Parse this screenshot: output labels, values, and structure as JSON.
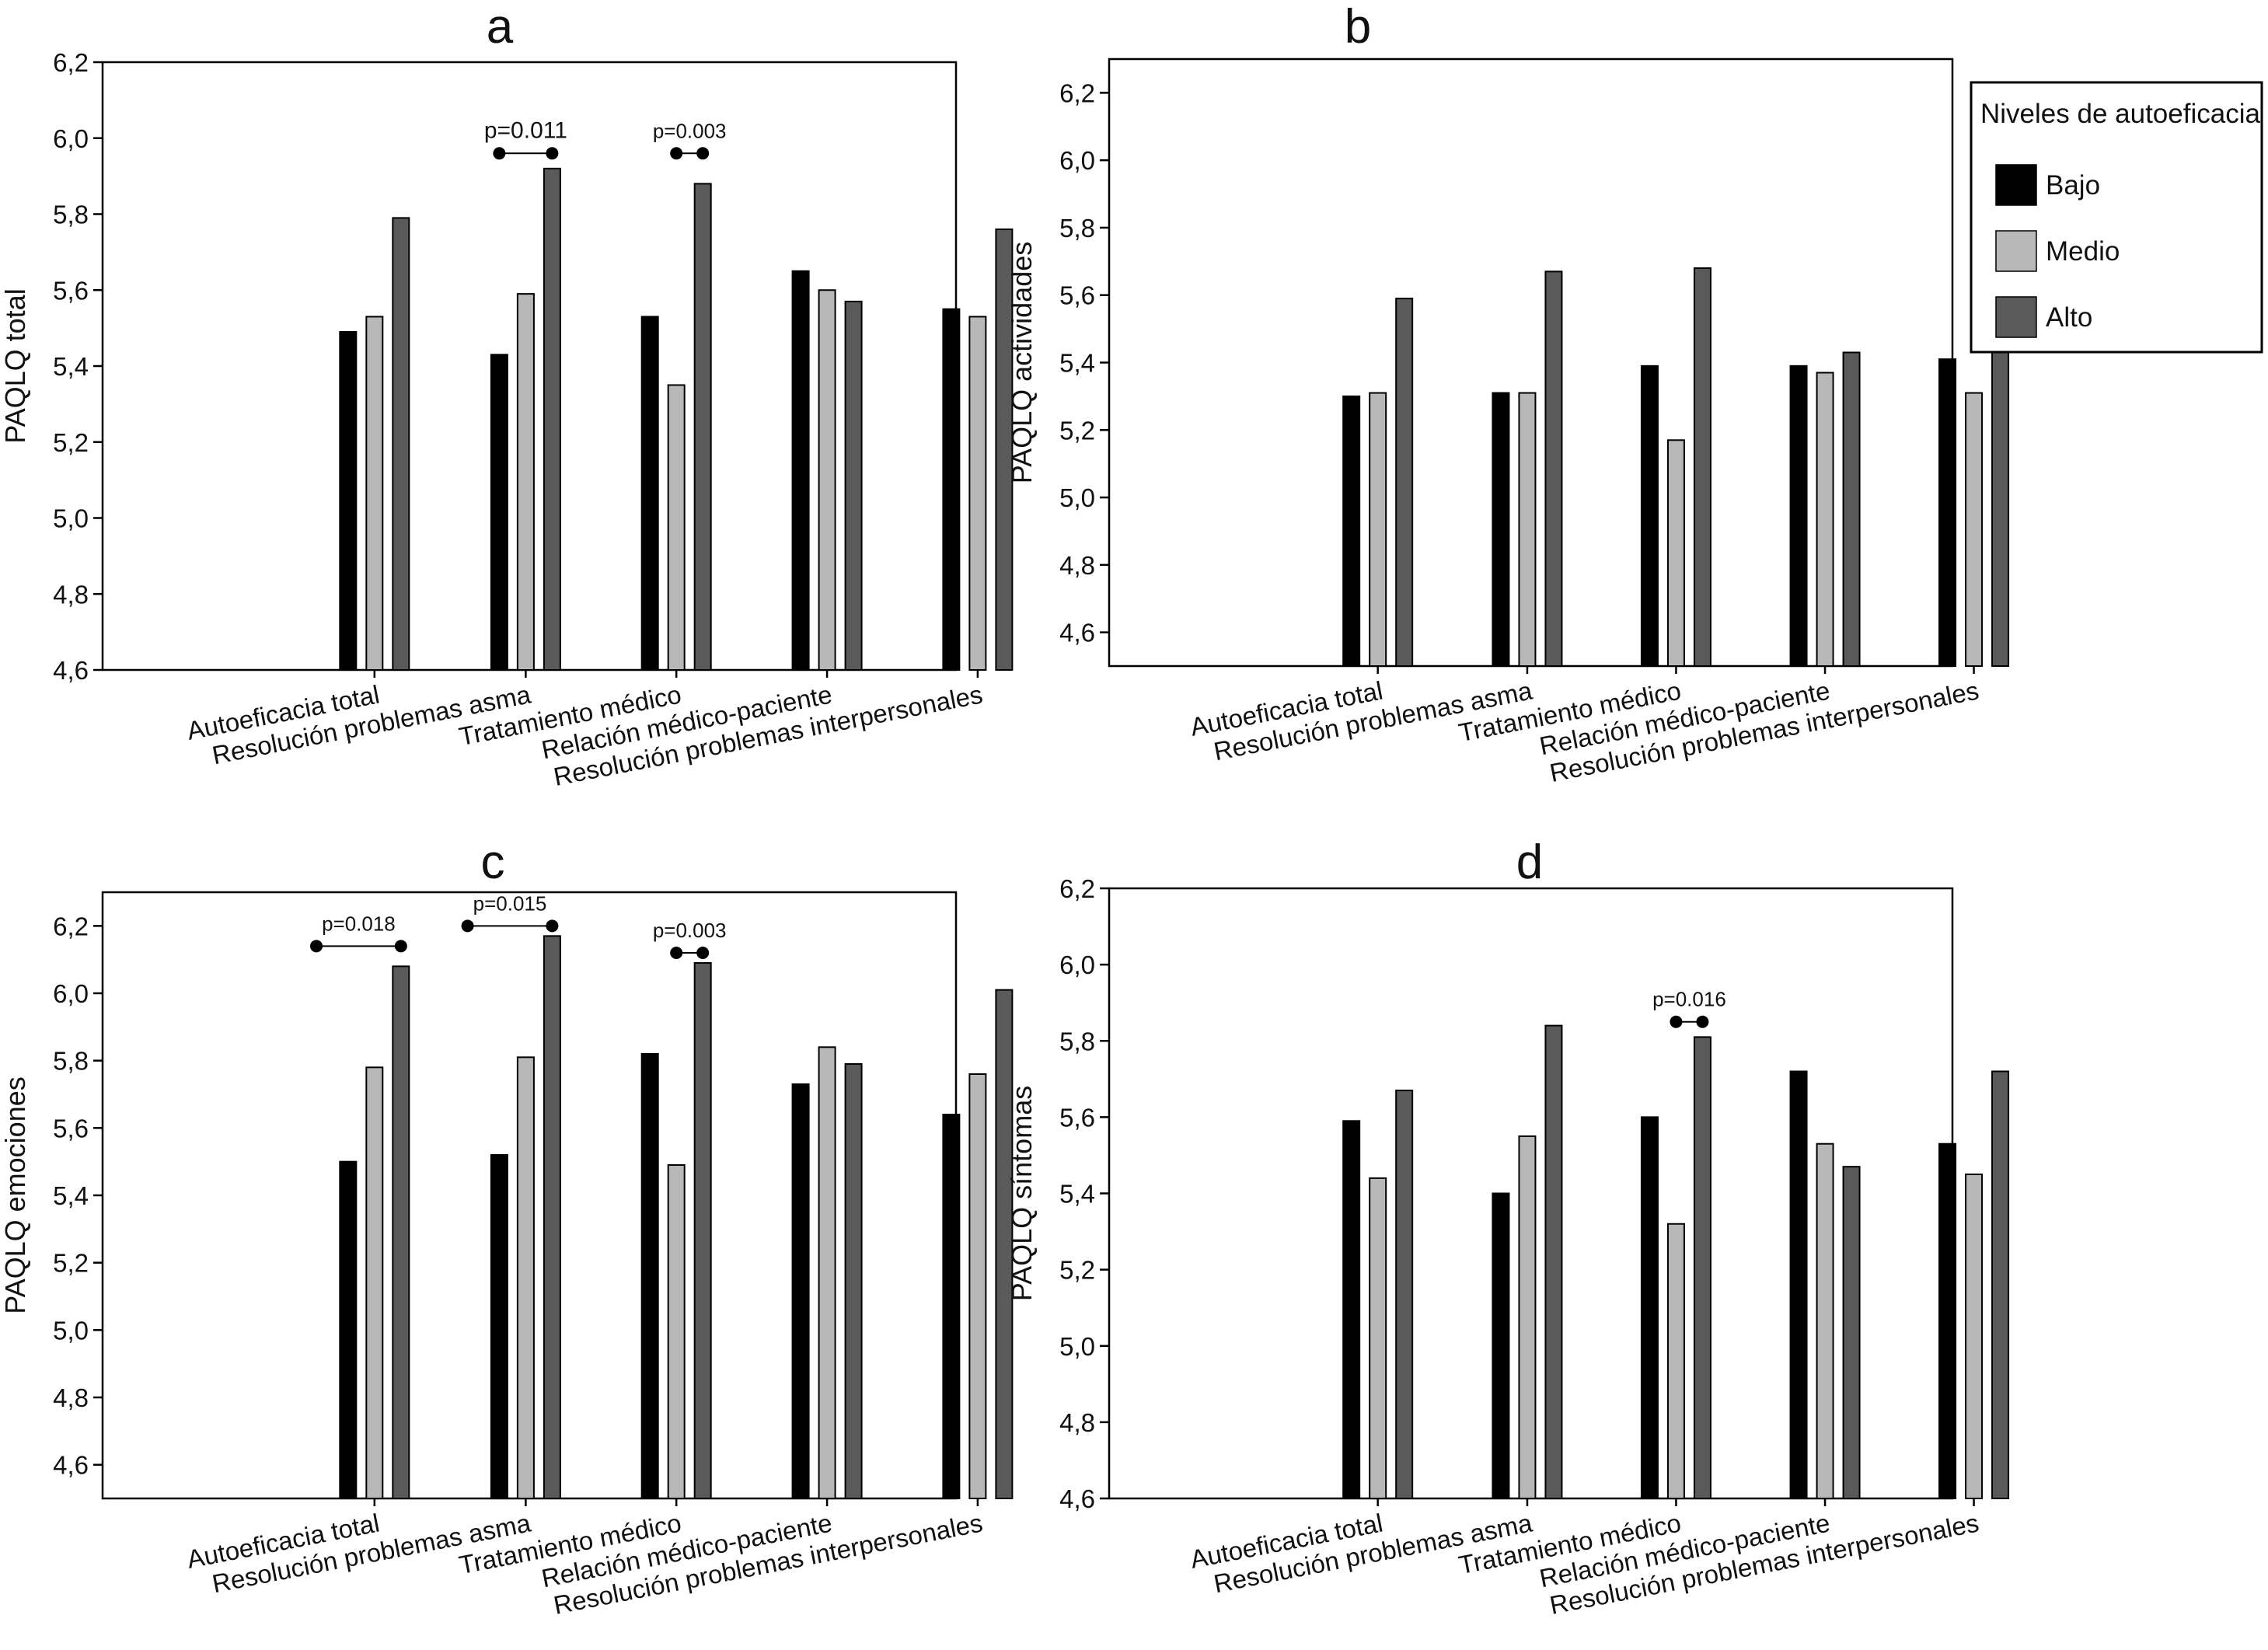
{
  "figure": {
    "legend": {
      "title": "Niveles de autoeficacia",
      "items": [
        {
          "label": "Bajo",
          "color": "#000000"
        },
        {
          "label": "Medio",
          "color": "#b8b8b8"
        },
        {
          "label": "Alto",
          "color": "#5a5a5a"
        }
      ]
    }
  },
  "chart_data": [
    {
      "panel": "a",
      "type": "bar",
      "title": "a",
      "ylabel": "PAQLQ total",
      "ylim": [
        4.6,
        6.2
      ],
      "yticks": [
        "4,6",
        "4,8",
        "5,0",
        "5,2",
        "5,4",
        "5,6",
        "5,8",
        "6,0",
        "6,2"
      ],
      "categories": [
        "Autoeficacia total",
        "Resolución problemas asma",
        "Tratamiento médico",
        "Relación médico-paciente",
        "Resolución problemas interpersonales"
      ],
      "series": [
        {
          "name": "Bajo",
          "color": "#000000",
          "values": [
            5.49,
            5.43,
            5.53,
            5.65,
            5.55
          ]
        },
        {
          "name": "Medio",
          "color": "#b8b8b8",
          "values": [
            5.53,
            5.59,
            5.35,
            5.6,
            5.53
          ]
        },
        {
          "name": "Alto",
          "color": "#5a5a5a",
          "values": [
            5.79,
            5.92,
            5.88,
            5.57,
            5.76
          ]
        }
      ],
      "annotations": [
        {
          "text": "p=0.011",
          "category": 1,
          "from": "Bajo",
          "to": "Alto",
          "y": 5.96
        },
        {
          "text": "p=0.003",
          "category": 2,
          "from": "Medio",
          "to": "Alto",
          "y": 5.96
        }
      ]
    },
    {
      "panel": "b",
      "type": "bar",
      "title": "b",
      "ylabel": "PAQLQ actividades",
      "ylim": [
        4.5,
        6.3
      ],
      "yticks": [
        "4,6",
        "4,8",
        "5,0",
        "5,2",
        "5,4",
        "5,6",
        "5,8",
        "6,0",
        "6,2"
      ],
      "categories": [
        "Autoeficacia total",
        "Resolución problemas asma",
        "Tratamiento médico",
        "Relación médico-paciente",
        "Resolución problemas interpersonales"
      ],
      "series": [
        {
          "name": "Bajo",
          "color": "#000000",
          "values": [
            5.3,
            5.31,
            5.39,
            5.39,
            5.41
          ]
        },
        {
          "name": "Medio",
          "color": "#b8b8b8",
          "values": [
            5.31,
            5.31,
            5.17,
            5.37,
            5.31
          ]
        },
        {
          "name": "Alto",
          "color": "#5a5a5a",
          "values": [
            5.59,
            5.67,
            5.68,
            5.43,
            5.47
          ]
        }
      ],
      "annotations": []
    },
    {
      "panel": "c",
      "type": "bar",
      "title": "c",
      "ylabel": "PAQLQ emociones",
      "ylim": [
        4.5,
        6.3
      ],
      "yticks": [
        "4,6",
        "4,8",
        "5,0",
        "5,2",
        "5,4",
        "5,6",
        "5,8",
        "6,0",
        "6,2"
      ],
      "categories": [
        "Autoeficacia total",
        "Resolución problemas asma",
        "Tratamiento médico",
        "Relación médico-paciente",
        "Resolución problemas interpersonales"
      ],
      "series": [
        {
          "name": "Bajo",
          "color": "#000000",
          "values": [
            5.5,
            5.52,
            5.82,
            5.73,
            5.64
          ]
        },
        {
          "name": "Medio",
          "color": "#b8b8b8",
          "values": [
            5.78,
            5.81,
            5.49,
            5.84,
            5.76
          ]
        },
        {
          "name": "Alto",
          "color": "#5a5a5a",
          "values": [
            6.08,
            6.17,
            6.09,
            5.79,
            6.01
          ]
        }
      ],
      "annotations": [
        {
          "text": "p=0.018",
          "category": 0,
          "from": "left",
          "to": "Alto",
          "y": 6.14
        },
        {
          "text": "p=0.015",
          "category": 1,
          "from": "left",
          "to": "Alto",
          "y": 6.2
        },
        {
          "text": "p=0.003",
          "category": 2,
          "from": "Medio",
          "to": "Alto",
          "y": 6.12
        }
      ]
    },
    {
      "panel": "d",
      "type": "bar",
      "title": "d",
      "ylabel": "PAQLQ síntomas",
      "ylim": [
        4.6,
        6.2
      ],
      "yticks": [
        "4,6",
        "4,8",
        "5,0",
        "5,2",
        "5,4",
        "5,6",
        "5,8",
        "6,0",
        "6,2"
      ],
      "categories": [
        "Autoeficacia total",
        "Resolución problemas asma",
        "Tratamiento médico",
        "Relación médico-paciente",
        "Resolución problemas interpersonales"
      ],
      "series": [
        {
          "name": "Bajo",
          "color": "#000000",
          "values": [
            5.59,
            5.4,
            5.6,
            5.72,
            5.53
          ]
        },
        {
          "name": "Medio",
          "color": "#b8b8b8",
          "values": [
            5.44,
            5.55,
            5.32,
            5.53,
            5.45
          ]
        },
        {
          "name": "Alto",
          "color": "#5a5a5a",
          "values": [
            5.67,
            5.84,
            5.81,
            5.47,
            5.72
          ]
        }
      ],
      "annotations": [
        {
          "text": "p=0.016",
          "category": 2,
          "from": "Medio",
          "to": "Alto",
          "y": 5.85
        }
      ]
    }
  ]
}
